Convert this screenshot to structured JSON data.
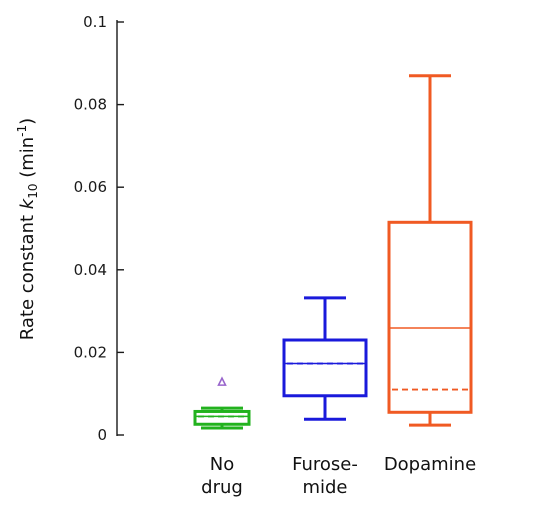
{
  "chart_data": {
    "type": "box",
    "ylabel": {
      "prefix": "Rate constant ",
      "var": "k",
      "sub": "10",
      "unit_open": " (min",
      "sup": "-1",
      "unit_close": ")"
    },
    "ylim": [
      0,
      0.1
    ],
    "yticks": [
      {
        "value": 0,
        "label": "0"
      },
      {
        "value": 0.02,
        "label": "0.02"
      },
      {
        "value": 0.04,
        "label": "0.04"
      },
      {
        "value": 0.06,
        "label": "0.06"
      },
      {
        "value": 0.08,
        "label": "0.08"
      },
      {
        "value": 0.1,
        "label": "0.1"
      }
    ],
    "grid": false,
    "groups": [
      {
        "label_lines": [
          "No",
          "drug"
        ],
        "color": "#22b21e",
        "whisker_low": 0.0017,
        "q1": 0.0026,
        "median": 0.0045,
        "mean": 0.0045,
        "q3": 0.0057,
        "whisker_high": 0.0065,
        "outliers": [
          0.0128
        ],
        "outlier_color": "#9966cc"
      },
      {
        "label_lines": [
          "Furose-",
          "mide"
        ],
        "color": "#1a1adb",
        "whisker_low": 0.0038,
        "q1": 0.0095,
        "median": 0.0173,
        "mean": 0.0173,
        "q3": 0.023,
        "whisker_high": 0.0332,
        "outliers": [],
        "outlier_color": "#1a1adb"
      },
      {
        "label_lines": [
          "Dopamine"
        ],
        "color": "#f05a23",
        "whisker_low": 0.0024,
        "q1": 0.0055,
        "median": 0.0259,
        "mean": 0.011,
        "q3": 0.0515,
        "whisker_high": 0.087,
        "outliers": [],
        "outlier_color": "#f05a23"
      }
    ]
  }
}
